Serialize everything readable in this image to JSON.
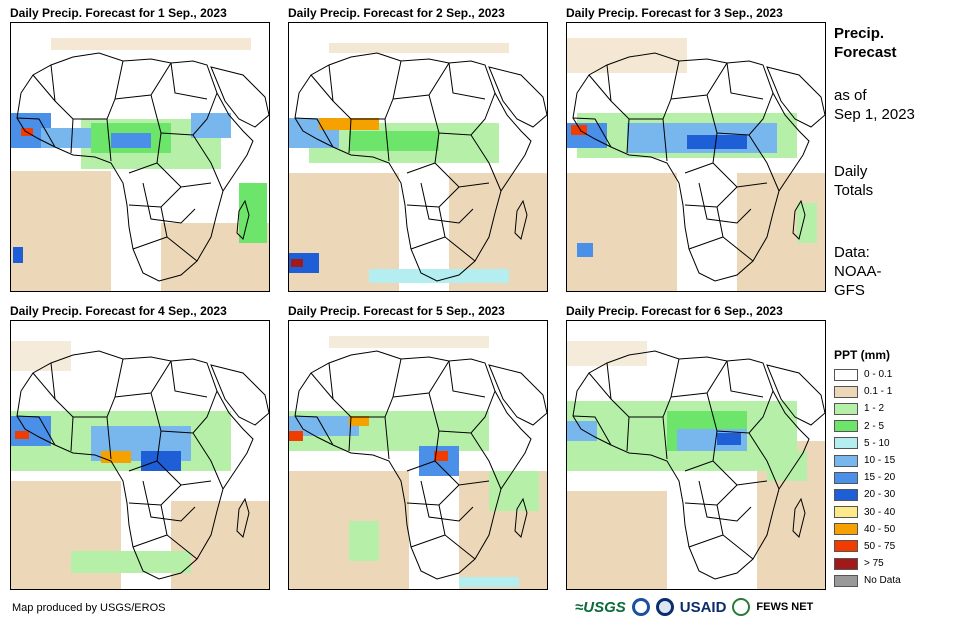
{
  "panels": [
    {
      "title": "Daily Precip. Forecast for 1 Sep., 2023"
    },
    {
      "title": "Daily Precip. Forecast for 2 Sep., 2023"
    },
    {
      "title": "Daily Precip. Forecast for 3 Sep., 2023"
    },
    {
      "title": "Daily Precip. Forecast for 4 Sep., 2023"
    },
    {
      "title": "Daily Precip. Forecast for 5 Sep., 2023"
    },
    {
      "title": "Daily Precip. Forecast for 6 Sep., 2023"
    }
  ],
  "sidebar": {
    "title_line1": "Precip.",
    "title_line2": "Forecast",
    "asof_line1": "as of",
    "asof_line2": "Sep 1, 2023",
    "totals_line1": "Daily",
    "totals_line2": "Totals",
    "data_line1": "Data:",
    "data_line2": "NOAA-",
    "data_line3": "GFS"
  },
  "legend": {
    "title": "PPT (mm)",
    "items": [
      {
        "label": "0 - 0.1",
        "color": "#ffffff"
      },
      {
        "label": "0.1 - 1",
        "color": "#ecd8b8"
      },
      {
        "label": "1 - 2",
        "color": "#b6f0a8"
      },
      {
        "label": "2 - 5",
        "color": "#6de46a"
      },
      {
        "label": "5 - 10",
        "color": "#b4eef0"
      },
      {
        "label": "10 - 15",
        "color": "#78b6ee"
      },
      {
        "label": "15 - 20",
        "color": "#4a8fe8"
      },
      {
        "label": "20 - 30",
        "color": "#1e5fd8"
      },
      {
        "label": "30 - 40",
        "color": "#fbe98a"
      },
      {
        "label": "40 - 50",
        "color": "#f5a200"
      },
      {
        "label": "50 - 75",
        "color": "#f03c00"
      },
      {
        "label": "> 75",
        "color": "#a01a1a"
      },
      {
        "label": "No Data",
        "color": "#999999"
      }
    ]
  },
  "footer": {
    "credit": "Map produced by USGS/EROS",
    "logo_usgs": "≈USGS",
    "logo_usaid": "USAID",
    "logo_fews": "FEWS NET"
  }
}
